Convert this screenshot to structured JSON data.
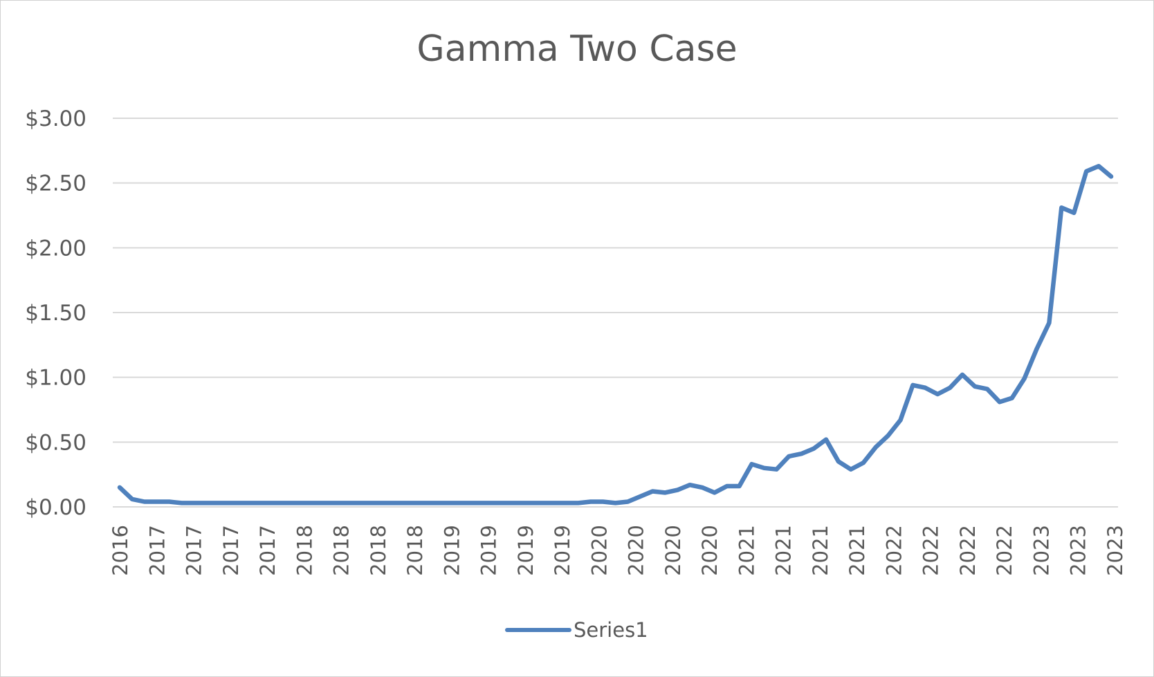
{
  "chart_data": {
    "type": "line",
    "title": "Gamma Two Case",
    "xlabel": "",
    "ylabel": "",
    "ylim": [
      0,
      3
    ],
    "y_tick_values": [
      0,
      0.5,
      1,
      1.5,
      2,
      2.5,
      3
    ],
    "y_tick_labels": [
      "$0.00",
      "$0.50",
      "$1.00",
      "$1.50",
      "$2.00",
      "$2.50",
      "$3.00"
    ],
    "x_tick_labels": [
      "2016",
      "2017",
      "2017",
      "2017",
      "2017",
      "2018",
      "2018",
      "2018",
      "2018",
      "2019",
      "2019",
      "2019",
      "2019",
      "2020",
      "2020",
      "2020",
      "2020",
      "2021",
      "2021",
      "2021",
      "2021",
      "2022",
      "2022",
      "2022",
      "2022",
      "2023",
      "2023",
      "2023"
    ],
    "grid": true,
    "legend_position": "bottom",
    "line_color": "#4f81bd",
    "series": [
      {
        "name": "Series1",
        "values": [
          0.15,
          0.06,
          0.04,
          0.04,
          0.04,
          0.03,
          0.03,
          0.03,
          0.03,
          0.03,
          0.03,
          0.03,
          0.03,
          0.03,
          0.03,
          0.03,
          0.03,
          0.03,
          0.03,
          0.03,
          0.03,
          0.03,
          0.03,
          0.03,
          0.03,
          0.03,
          0.03,
          0.03,
          0.03,
          0.03,
          0.03,
          0.03,
          0.03,
          0.03,
          0.03,
          0.03,
          0.03,
          0.03,
          0.04,
          0.04,
          0.03,
          0.04,
          0.08,
          0.12,
          0.11,
          0.13,
          0.17,
          0.15,
          0.11,
          0.16,
          0.16,
          0.33,
          0.3,
          0.29,
          0.39,
          0.41,
          0.45,
          0.52,
          0.35,
          0.29,
          0.34,
          0.46,
          0.55,
          0.67,
          0.94,
          0.92,
          0.87,
          0.92,
          1.02,
          0.93,
          0.91,
          0.81,
          0.84,
          0.99,
          1.22,
          1.42,
          2.31,
          2.27,
          2.59,
          2.63,
          2.55
        ]
      }
    ]
  }
}
